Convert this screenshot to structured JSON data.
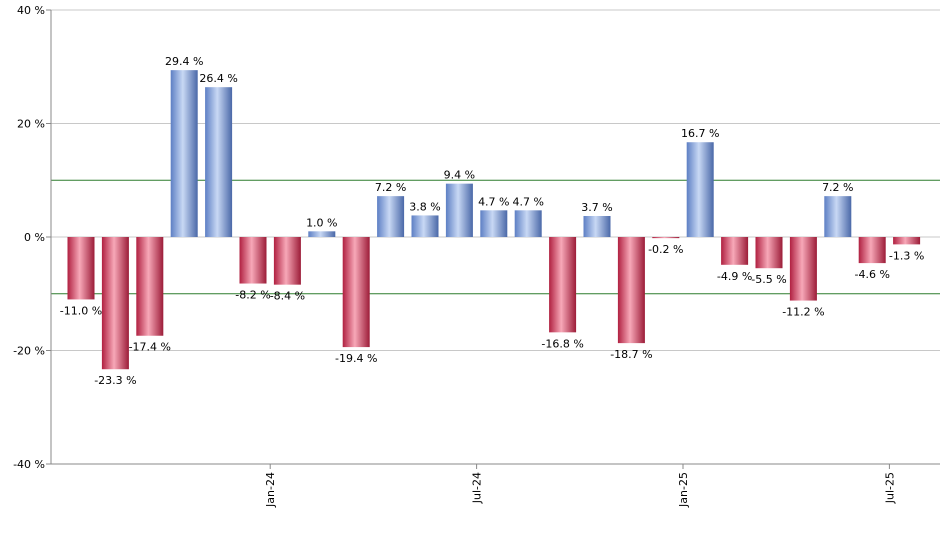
{
  "colors": {
    "positive": "#7f9fd9",
    "negative": "#d44060",
    "gridline": "#c8c8c8",
    "reference_line": "#2e7d2e",
    "axis": "#888888"
  },
  "chart_data": {
    "type": "bar",
    "title": "",
    "xlabel": "",
    "ylabel": "",
    "ylim": [
      -40,
      40
    ],
    "y_ticks": [
      -40,
      -20,
      0,
      20,
      40
    ],
    "y_tick_labels": [
      "-40 %",
      "-20 %",
      "0 %",
      "20 %",
      "40 %"
    ],
    "reference_lines": [
      10,
      -10
    ],
    "grid": true,
    "legend": "none",
    "x_tick_labels": [
      {
        "label": "Jan-24",
        "after_bar_index": 5
      },
      {
        "label": "Jul-24",
        "after_bar_index": 11
      },
      {
        "label": "Jan-25",
        "after_bar_index": 17
      },
      {
        "label": "Jul-25",
        "after_bar_index": 23
      }
    ],
    "values": [
      -11.0,
      -23.3,
      -17.4,
      29.4,
      26.4,
      -8.2,
      -8.4,
      1.0,
      -19.4,
      7.2,
      3.8,
      9.4,
      4.7,
      4.7,
      -16.8,
      3.7,
      -18.7,
      -0.2,
      16.7,
      -4.9,
      -5.5,
      -11.2,
      7.2,
      -4.6,
      -1.3
    ],
    "data_labels": [
      "-11.0 %",
      "-23.3 %",
      "-17.4 %",
      "29.4 %",
      "26.4 %",
      "-8.2 %",
      "-8.4 %",
      "1.0 %",
      "-19.4 %",
      "7.2 %",
      "3.8 %",
      "9.4 %",
      "4.7 %",
      "4.7 %",
      "-16.8 %",
      "3.7 %",
      "-18.7 %",
      "-0.2 %",
      "16.7 %",
      "-4.9 %",
      "-5.5 %",
      "-11.2 %",
      "7.2 %",
      "-4.6 %",
      "-1.3 %"
    ]
  }
}
